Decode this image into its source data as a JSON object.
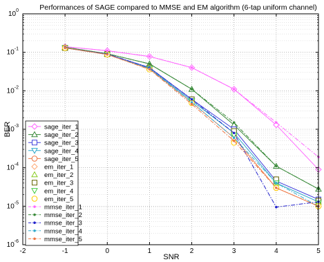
{
  "chart_data": {
    "type": "line",
    "title": "Performances of SAGE compared to MMSE and EM algorithm (6-tap uniform channel)",
    "xlabel": "SNR",
    "ylabel": "BER",
    "xlim": [
      -2,
      5
    ],
    "ylim": [
      1e-06,
      1
    ],
    "yscale": "log",
    "grid": true,
    "legend_position": "bottom-left",
    "x_ticks": [
      "-2",
      "-1",
      "0",
      "1",
      "2",
      "3",
      "4",
      "5"
    ],
    "y_ticks": [
      {
        "base": "10",
        "exp": "-6"
      },
      {
        "base": "10",
        "exp": "-5"
      },
      {
        "base": "10",
        "exp": "-4"
      },
      {
        "base": "10",
        "exp": "-3"
      },
      {
        "base": "10",
        "exp": "-2"
      },
      {
        "base": "10",
        "exp": "-1"
      },
      {
        "base": "10",
        "exp": "0"
      }
    ],
    "x": [
      -1,
      0,
      1,
      2,
      3,
      4,
      5
    ],
    "series": [
      {
        "name": "sage_iter_1",
        "color": "#ff66ff",
        "line": "solid",
        "marker": "diamond",
        "values": [
          0.14,
          0.11,
          0.078,
          0.04,
          0.011,
          0.0013,
          9e-05
        ]
      },
      {
        "name": "sage_iter_2",
        "color": "#3a8a3a",
        "line": "solid",
        "marker": "triangle-up",
        "values": [
          0.135,
          0.092,
          0.05,
          0.011,
          0.0013,
          0.00011,
          2.8e-05
        ]
      },
      {
        "name": "sage_iter_3",
        "color": "#4444dd",
        "line": "solid",
        "marker": "square",
        "values": [
          0.13,
          0.09,
          0.04,
          0.006,
          0.001,
          4.5e-05,
          1.5e-05
        ]
      },
      {
        "name": "sage_iter_4",
        "color": "#33aacc",
        "line": "solid",
        "marker": "triangle-down",
        "values": [
          0.13,
          0.088,
          0.038,
          0.0055,
          0.0008,
          4e-05,
          1.3e-05
        ]
      },
      {
        "name": "sage_iter_5",
        "color": "#ee7744",
        "line": "solid",
        "marker": "circle",
        "values": [
          0.13,
          0.088,
          0.037,
          0.005,
          0.0006,
          3e-05,
          1e-05
        ]
      },
      {
        "name": "em_iter_1",
        "color": "#ffaa77",
        "line": "none",
        "marker": "diamond",
        "values": [
          0.13,
          0.088,
          0.038,
          0.005,
          0.0005,
          3e-05,
          1e-05
        ]
      },
      {
        "name": "em_iter_2",
        "color": "#88cc22",
        "line": "none",
        "marker": "triangle-up",
        "values": [
          0.13,
          0.09,
          0.04,
          0.006,
          0.0008,
          4e-05,
          1.3e-05
        ]
      },
      {
        "name": "em_iter_3",
        "color": "#666600",
        "line": "none",
        "marker": "square",
        "values": [
          0.13,
          0.09,
          0.04,
          0.006,
          0.0009,
          5e-05,
          1.4e-05
        ]
      },
      {
        "name": "em_iter_4",
        "color": "#44cc44",
        "line": "none",
        "marker": "triangle-down",
        "values": [
          0.13,
          0.088,
          0.038,
          0.0055,
          0.0007,
          4e-05,
          1.2e-05
        ]
      },
      {
        "name": "em_iter_5",
        "color": "#ffcc00",
        "line": "none",
        "marker": "circle",
        "values": [
          0.13,
          0.088,
          0.036,
          0.0048,
          0.00045,
          3e-05,
          1e-05
        ]
      },
      {
        "name": "mmse_iter_1",
        "color": "#ff66ff",
        "line": "dashdot",
        "marker": "point",
        "values": [
          0.14,
          0.11,
          0.078,
          0.04,
          0.011,
          0.0015,
          0.00019
        ]
      },
      {
        "name": "mmse_iter_2",
        "color": "#3a8a3a",
        "line": "dashdot",
        "marker": "point",
        "values": [
          0.135,
          0.092,
          0.05,
          0.011,
          0.0015,
          0.00011,
          2.8e-05
        ]
      },
      {
        "name": "mmse_iter_3",
        "color": "#2222cc",
        "line": "dashdot",
        "marker": "point",
        "values": [
          0.13,
          0.09,
          0.04,
          0.006,
          0.0008,
          9.5e-06,
          1.3e-05
        ]
      },
      {
        "name": "mmse_iter_4",
        "color": "#33aacc",
        "line": "dashdot",
        "marker": "point",
        "values": [
          0.13,
          0.088,
          0.038,
          0.005,
          0.0006,
          4e-05,
          1e-05
        ]
      },
      {
        "name": "mmse_iter_5",
        "color": "#ee7744",
        "line": "dashdot",
        "marker": "point",
        "values": [
          0.13,
          0.088,
          0.036,
          0.0045,
          0.0005,
          3e-05,
          1e-05
        ]
      }
    ]
  }
}
